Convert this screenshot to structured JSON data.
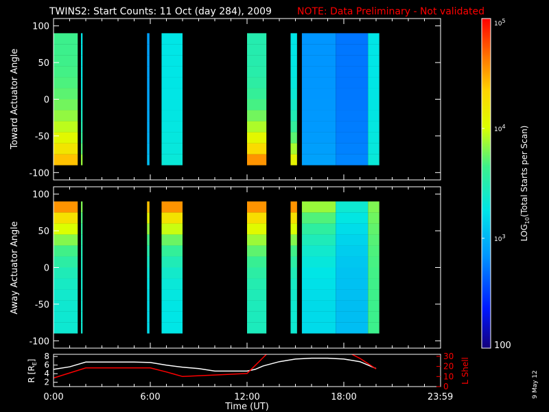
{
  "title": "TWINS2: Start Counts: 11 Oct (day 284), 2009",
  "note": "NOTE: Data Preliminary - Not validated",
  "date_stamp": "9 May 12",
  "colors": {
    "background": "#000000",
    "foreground": "#ffffff",
    "note": "#ff0000",
    "r_trace": "#ffffff",
    "l_trace": "#ff0000"
  },
  "chart_data": [
    {
      "type": "heatmap",
      "ylabel": "Toward Actuator Angle",
      "ylim": [
        -110,
        110
      ],
      "yticks": [
        100,
        50,
        0,
        -50,
        -100
      ],
      "ytick_labels": [
        "100",
        "50",
        "0",
        "-50",
        "-100"
      ],
      "xlim": [
        0,
        24
      ],
      "xticks": [
        0,
        6,
        12,
        18,
        24
      ],
      "xtick_labels": [
        "",
        "",
        "",
        "",
        ""
      ],
      "angle_range": [
        -90,
        90
      ],
      "segments": [
        {
          "t0": 0.0,
          "t1": 1.5,
          "level": 0.55,
          "edge": 0.8,
          "edge_side": "low"
        },
        {
          "t0": 1.7,
          "t1": 1.8,
          "level": 0.42,
          "edge": 0.62,
          "edge_side": "low"
        },
        {
          "t0": 5.8,
          "t1": 5.95,
          "level": 0.3,
          "edge": 0.35,
          "edge_side": "low"
        },
        {
          "t0": 6.7,
          "t1": 8.0,
          "level": 0.42,
          "edge": 0.44,
          "edge_side": "low"
        },
        {
          "t0": 12.0,
          "t1": 13.2,
          "level": 0.5,
          "edge": 0.85,
          "edge_side": "low"
        },
        {
          "t0": 14.7,
          "t1": 15.1,
          "level": 0.42,
          "edge": 0.7,
          "edge_side": "low"
        },
        {
          "t0": 15.4,
          "t1": 17.5,
          "level": 0.28,
          "edge": 0.3,
          "edge_side": "low"
        },
        {
          "t0": 17.5,
          "t1": 19.5,
          "level": 0.24,
          "edge": 0.26,
          "edge_side": "low"
        },
        {
          "t0": 19.5,
          "t1": 20.2,
          "level": 0.42,
          "edge": 0.44,
          "edge_side": "low"
        }
      ]
    },
    {
      "type": "heatmap",
      "ylabel": "Away Actuator Angle",
      "ylim": [
        -110,
        110
      ],
      "yticks": [
        100,
        50,
        0,
        -50,
        -100
      ],
      "ytick_labels": [
        "100",
        "50",
        "0",
        "-50",
        "-100"
      ],
      "xlim": [
        0,
        24
      ],
      "xticks": [
        0,
        6,
        12,
        18,
        24
      ],
      "xtick_labels": [
        "",
        "",
        "",
        "",
        ""
      ],
      "angle_range": [
        -90,
        90
      ],
      "segments": [
        {
          "t0": 0.0,
          "t1": 1.5,
          "level": 0.45,
          "edge": 0.85,
          "edge_side": "high"
        },
        {
          "t0": 1.7,
          "t1": 1.8,
          "level": 0.45,
          "edge": 0.6,
          "edge_side": "high"
        },
        {
          "t0": 5.8,
          "t1": 5.95,
          "level": 0.4,
          "edge": 0.8,
          "edge_side": "high"
        },
        {
          "t0": 6.7,
          "t1": 8.0,
          "level": 0.42,
          "edge": 0.85,
          "edge_side": "high"
        },
        {
          "t0": 12.0,
          "t1": 13.2,
          "level": 0.48,
          "edge": 0.85,
          "edge_side": "high"
        },
        {
          "t0": 14.7,
          "t1": 15.1,
          "level": 0.45,
          "edge": 0.85,
          "edge_side": "high"
        },
        {
          "t0": 15.4,
          "t1": 17.5,
          "level": 0.4,
          "edge": 0.62,
          "edge_side": "high"
        },
        {
          "t0": 17.5,
          "t1": 19.5,
          "level": 0.35,
          "edge": 0.45,
          "edge_side": "high"
        },
        {
          "t0": 19.5,
          "t1": 20.2,
          "level": 0.55,
          "edge": 0.6,
          "edge_side": "high"
        }
      ]
    },
    {
      "type": "line",
      "xlabel": "Time (UT)",
      "xlim": [
        0,
        24
      ],
      "xticks": [
        0,
        6,
        12,
        18,
        24
      ],
      "xtick_labels": [
        "0:00",
        "6:00",
        "12:00",
        "18:00",
        "23:59"
      ],
      "left_axis": {
        "label": "R [R",
        "label_sub": "E",
        "label_end": "]",
        "ylim": [
          1,
          8.5
        ],
        "ticks": [
          2,
          4,
          6,
          8
        ],
        "tick_labels": [
          "2",
          "4",
          "6",
          "8"
        ]
      },
      "right_axis": {
        "label": "L Shell",
        "ylim": [
          0,
          32
        ],
        "ticks": [
          0,
          10,
          20,
          30
        ],
        "tick_labels": [
          "0",
          "10",
          "20",
          "30"
        ]
      },
      "series": [
        {
          "axis": "left",
          "x": [
            0,
            1,
            2,
            3,
            4,
            5,
            6,
            7,
            8,
            9,
            10,
            11,
            12,
            12.5,
            13,
            14,
            15,
            16,
            17,
            18,
            19,
            19.5,
            20
          ],
          "y": [
            5.0,
            5.6,
            6.7,
            6.7,
            6.7,
            6.7,
            6.6,
            6.0,
            5.5,
            5.2,
            4.6,
            4.6,
            4.6,
            5.0,
            5.8,
            6.8,
            7.4,
            7.6,
            7.6,
            7.4,
            6.8,
            6.0,
            5.2
          ]
        },
        {
          "axis": "right",
          "x": [
            0,
            2,
            4,
            6,
            7,
            8,
            10,
            12,
            13.2,
            13.5,
            17.5,
            18.5,
            19,
            20
          ],
          "y": [
            8.5,
            18.5,
            18.5,
            18.5,
            14.5,
            10.0,
            11.5,
            13.0,
            32.0,
            null,
            null,
            32.0,
            28.0,
            17.5
          ]
        }
      ]
    }
  ],
  "colorbar": {
    "label": "LOG",
    "label_sub": "10",
    "label_rest": "(Total Starts per Scan)",
    "ticks": [
      {
        "value": 100,
        "base": "100",
        "exp": ""
      },
      {
        "value": 1000,
        "base": "10",
        "exp": "3"
      },
      {
        "value": 10000,
        "base": "10",
        "exp": "4"
      },
      {
        "value": 100000,
        "base": "10",
        "exp": "5"
      }
    ],
    "range": [
      100,
      100000
    ]
  }
}
